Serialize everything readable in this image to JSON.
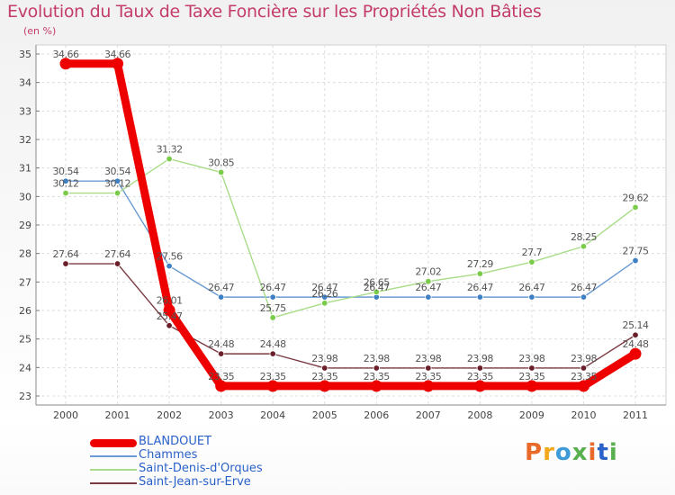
{
  "header": {
    "title": "Evolution du Taux de Taxe Foncière sur les Propriétés Non Bâties",
    "unit": "(en %)"
  },
  "logo": {
    "text": "Proxiti",
    "colors": [
      "#e8692a",
      "#f2a81d",
      "#3d9bd9",
      "#59b04f",
      "#e8692a",
      "#2a61c9",
      "#59b04f"
    ]
  },
  "chart_data": {
    "type": "line",
    "title": "Evolution du Taux de Taxe Foncière sur les Propriétés Non Bâties",
    "ylabel": "(en %)",
    "ylim": [
      23,
      35
    ],
    "grid": true,
    "legend_position": "bottom-left",
    "x": [
      "2000",
      "2001",
      "2002",
      "2003",
      "2004",
      "2005",
      "2006",
      "2007",
      "2008",
      "2009",
      "2010",
      "2011"
    ],
    "y_ticks": [
      "23",
      "24",
      "25",
      "26",
      "27",
      "28",
      "29",
      "30",
      "31",
      "32",
      "33",
      "34",
      "35"
    ],
    "series": [
      {
        "name": "Chammes",
        "color": "#6a9bd2",
        "marker": "#3f7fc4",
        "emphasis": false,
        "values": [
          30.54,
          30.54,
          27.56,
          26.47,
          26.47,
          26.47,
          26.47,
          26.47,
          26.47,
          26.47,
          26.47,
          27.75
        ],
        "labels": [
          "30.54",
          "30.54",
          "27.56",
          "26.47",
          "26.47",
          "26.47",
          "26.47",
          "26.47",
          "26.47",
          "26.47",
          "26.47",
          "27.75"
        ]
      },
      {
        "name": "Saint-Denis-d'Orques",
        "color": "#a8dc88",
        "marker": "#7acb4a",
        "emphasis": false,
        "values": [
          30.12,
          30.12,
          31.32,
          30.85,
          25.75,
          26.26,
          26.65,
          27.02,
          27.29,
          27.7,
          28.25,
          29.62
        ],
        "labels": [
          "30.12",
          "30.12",
          "31.32",
          "30.85",
          "25.75",
          "26.26",
          "26.65",
          "27.02",
          "27.29",
          "27.7",
          "28.25",
          "29.62"
        ]
      },
      {
        "name": "Saint-Jean-sur-Erve",
        "color": "#7a3a42",
        "marker": "#6b1f2a",
        "emphasis": false,
        "values": [
          27.64,
          27.64,
          25.47,
          24.48,
          24.48,
          23.98,
          23.98,
          23.98,
          23.98,
          23.98,
          23.98,
          25.14
        ],
        "labels": [
          "27.64",
          "27.64",
          "25.47",
          "24.48",
          "24.48",
          "23.98",
          "23.98",
          "23.98",
          "23.98",
          "23.98",
          "23.98",
          "25.14"
        ]
      },
      {
        "name": "BLANDOUET",
        "color": "#ee0000",
        "marker": "#ee0000",
        "emphasis": true,
        "values": [
          34.66,
          34.66,
          26.01,
          23.35,
          23.35,
          23.35,
          23.35,
          23.35,
          23.35,
          23.35,
          23.35,
          24.48
        ],
        "labels": [
          "34.66",
          "34.66",
          "26.01",
          "23.35",
          "23.35",
          "23.35",
          "23.35",
          "23.35",
          "23.35",
          "23.35",
          "23.35",
          "24.48"
        ]
      }
    ],
    "legend_order": [
      "BLANDOUET",
      "Chammes",
      "Saint-Denis-d'Orques",
      "Saint-Jean-sur-Erve"
    ]
  }
}
